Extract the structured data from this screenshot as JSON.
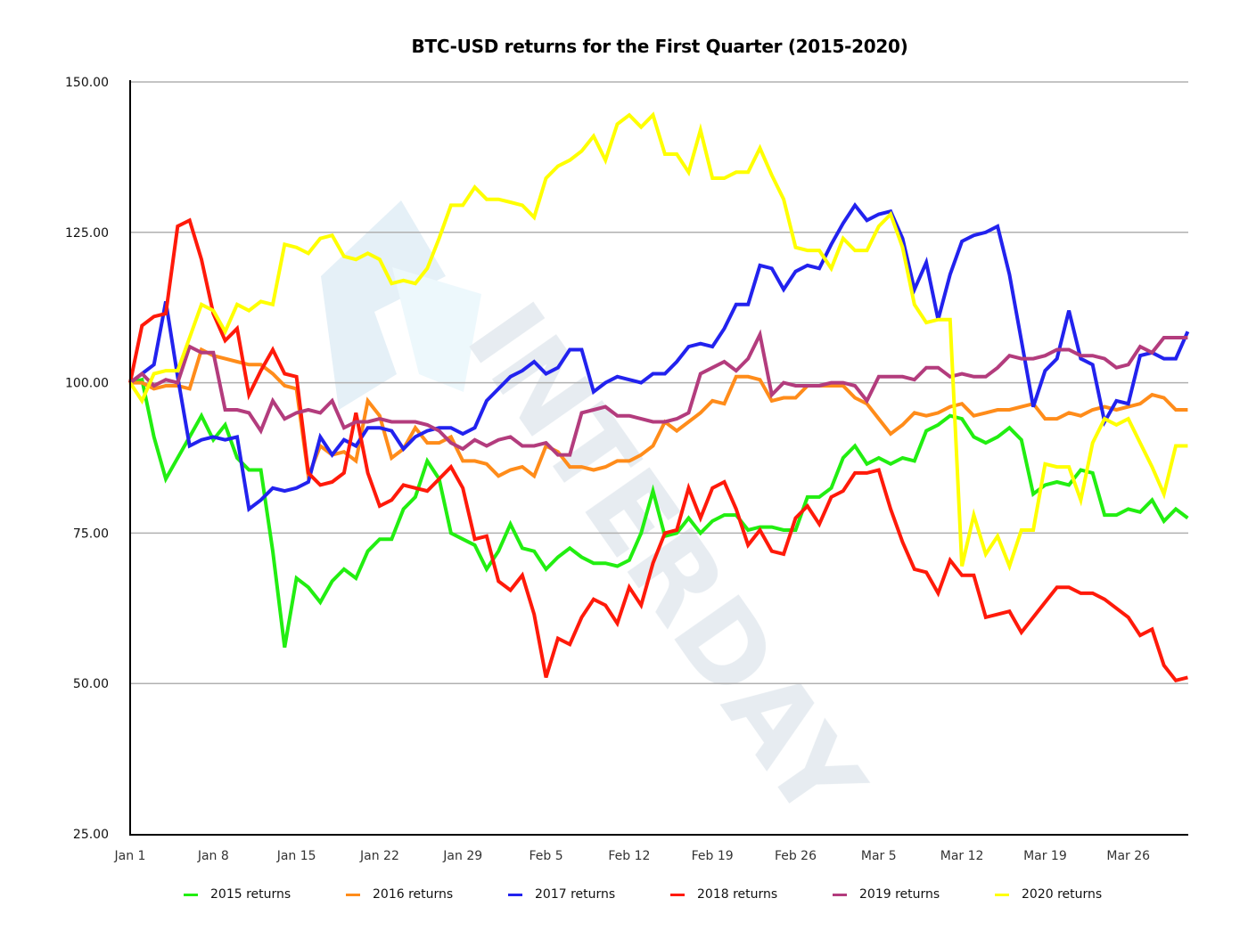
{
  "chart_data": {
    "type": "line",
    "title": "BTC-USD returns for the First Quarter (2015-2020)",
    "xlabel": "",
    "ylabel": "",
    "ylim": [
      25,
      150
    ],
    "yticks": [
      "25.00",
      "50.00",
      "75.00",
      "100.00",
      "125.00",
      "150.00"
    ],
    "xticks": [
      "Jan 1",
      "Jan 8",
      "Jan 15",
      "Jan 22",
      "Jan 29",
      "Feb 5",
      "Feb 12",
      "Feb 19",
      "Feb 26",
      "Mar 5",
      "Mar 12",
      "Mar 19",
      "Mar 26"
    ],
    "grid": "horizontal",
    "legend_position": "bottom",
    "x_unit": "day index (0 = Jan 1)",
    "series": [
      {
        "name": "2015 returns",
        "color": "#22ee11",
        "x": [
          0,
          1,
          2,
          3,
          4,
          5,
          6,
          7,
          8,
          9,
          10,
          11,
          12,
          13,
          14,
          15,
          16,
          17,
          18,
          19,
          20,
          21,
          22,
          23,
          24,
          25,
          26,
          27,
          28,
          29,
          30,
          31,
          32,
          33,
          34,
          35,
          36,
          37,
          38,
          39,
          40,
          41,
          42,
          43,
          44,
          45,
          46,
          47,
          48,
          49,
          50,
          51,
          52,
          53,
          54,
          55,
          56,
          57,
          58,
          59,
          60,
          61,
          62,
          63,
          64,
          65,
          66,
          67,
          68,
          69,
          70,
          71,
          72,
          73,
          74,
          75,
          76,
          77,
          78,
          79,
          80,
          81,
          82,
          83,
          84,
          85,
          86,
          87,
          88,
          89
        ],
        "values": [
          100,
          100.5,
          91,
          84,
          87.5,
          91,
          94.5,
          90.5,
          93,
          87.5,
          85.5,
          85.5,
          72,
          56,
          67.5,
          66,
          63.5,
          67,
          69,
          67.5,
          72,
          74,
          74,
          79,
          81,
          87,
          84,
          75,
          74,
          73,
          69,
          72,
          76.5,
          72.5,
          72,
          69,
          71,
          72.5,
          71,
          70,
          70,
          69.5,
          70.5,
          75,
          82,
          74.5,
          75,
          77.5,
          75,
          77,
          78,
          78,
          75.5,
          76,
          76,
          75.5,
          75.5,
          81,
          81,
          82.5,
          87.5,
          89.5,
          86.5,
          87.5,
          86.5,
          87.5,
          87,
          92,
          93,
          94.5,
          94,
          91,
          90,
          91,
          92.5,
          90.5,
          81.5,
          83,
          83.5,
          83,
          85.5,
          85,
          78,
          78,
          79,
          78.5,
          80.5,
          77,
          79,
          77.5
        ]
      },
      {
        "name": "2016 returns",
        "color": "#ff8c1a",
        "x": [
          0,
          1,
          2,
          3,
          4,
          5,
          6,
          7,
          8,
          9,
          10,
          11,
          12,
          13,
          14,
          15,
          16,
          17,
          18,
          19,
          20,
          21,
          22,
          23,
          24,
          25,
          26,
          27,
          28,
          29,
          30,
          31,
          32,
          33,
          34,
          35,
          36,
          37,
          38,
          39,
          40,
          41,
          42,
          43,
          44,
          45,
          46,
          47,
          48,
          49,
          50,
          51,
          52,
          53,
          54,
          55,
          56,
          57,
          58,
          59,
          60,
          61,
          62,
          63,
          64,
          65,
          66,
          67,
          68,
          69,
          70,
          71,
          72,
          73,
          74,
          75,
          76,
          77,
          78,
          79,
          80,
          81,
          82,
          83,
          84,
          85,
          86,
          87,
          88,
          89
        ],
        "values": [
          100,
          100,
          99,
          99.5,
          99.5,
          99,
          105.5,
          104.5,
          104,
          103.5,
          103,
          103,
          101.5,
          99.5,
          99,
          84.5,
          89.5,
          88,
          88.5,
          87,
          97,
          94.5,
          87.5,
          89,
          92.5,
          90,
          90,
          91,
          87,
          87,
          86.5,
          84.5,
          85.5,
          86,
          84.5,
          89.5,
          88.5,
          86,
          86,
          85.5,
          86,
          87,
          87,
          88,
          89.5,
          93.5,
          92,
          93.5,
          95,
          97,
          96.5,
          101,
          101,
          100.5,
          97,
          97.5,
          97.5,
          99.5,
          99.5,
          99.5,
          99.5,
          97.5,
          96.5,
          94,
          91.5,
          93,
          95,
          94.5,
          95,
          96,
          96.5,
          94.5,
          95,
          95.5,
          95.5,
          96,
          96.5,
          94,
          94,
          95,
          94.5,
          95.5,
          96,
          95.5,
          96,
          96.5,
          98,
          97.5,
          95.5,
          95.5
        ]
      },
      {
        "name": "2017 returns",
        "color": "#2222ee",
        "x": [
          0,
          1,
          2,
          3,
          4,
          5,
          6,
          7,
          8,
          9,
          10,
          11,
          12,
          13,
          14,
          15,
          16,
          17,
          18,
          19,
          20,
          21,
          22,
          23,
          24,
          25,
          26,
          27,
          28,
          29,
          30,
          31,
          32,
          33,
          34,
          35,
          36,
          37,
          38,
          39,
          40,
          41,
          42,
          43,
          44,
          45,
          46,
          47,
          48,
          49,
          50,
          51,
          52,
          53,
          54,
          55,
          56,
          57,
          58,
          59,
          60,
          61,
          62,
          63,
          64,
          65,
          66,
          67,
          68,
          69,
          70,
          71,
          72,
          73,
          74,
          75,
          76,
          77,
          78,
          79,
          80,
          81,
          82,
          83,
          84,
          85,
          86,
          87,
          88,
          89
        ],
        "values": [
          100,
          101.5,
          103,
          113.5,
          101,
          89.5,
          90.5,
          91,
          90.5,
          91,
          79,
          80.5,
          82.5,
          82,
          82.5,
          83.5,
          91,
          88,
          90.5,
          89.5,
          92.5,
          92.5,
          92,
          89,
          91,
          92,
          92.5,
          92.5,
          91.5,
          92.5,
          97,
          99,
          101,
          102,
          103.5,
          101.5,
          102.5,
          105.5,
          105.5,
          98.5,
          100,
          101,
          100.5,
          100,
          101.5,
          101.5,
          103.5,
          106,
          106.5,
          106,
          109,
          113,
          113,
          119.5,
          119,
          115.5,
          118.5,
          119.5,
          119,
          123,
          126.5,
          129.5,
          127,
          128,
          128.5,
          124,
          115.5,
          120,
          110.5,
          118,
          123.5,
          124.5,
          125,
          126,
          118,
          107,
          96,
          102,
          104,
          112,
          104,
          103,
          93.5,
          97,
          96.5,
          104.5,
          105,
          104,
          104,
          108.5
        ]
      },
      {
        "name": "2018 returns",
        "color": "#ff1a0a",
        "x": [
          0,
          1,
          2,
          3,
          4,
          5,
          6,
          7,
          8,
          9,
          10,
          11,
          12,
          13,
          14,
          15,
          16,
          17,
          18,
          19,
          20,
          21,
          22,
          23,
          24,
          25,
          26,
          27,
          28,
          29,
          30,
          31,
          32,
          33,
          34,
          35,
          36,
          37,
          38,
          39,
          40,
          41,
          42,
          43,
          44,
          45,
          46,
          47,
          48,
          49,
          50,
          51,
          52,
          53,
          54,
          55,
          56,
          57,
          58,
          59,
          60,
          61,
          62,
          63,
          64,
          65,
          66,
          67,
          68,
          69,
          70,
          71,
          72,
          73,
          74,
          75,
          76,
          77,
          78,
          79,
          80,
          81,
          82,
          83,
          84,
          85,
          86,
          87,
          88,
          89
        ],
        "values": [
          100,
          109.5,
          111,
          111.5,
          126,
          127,
          120.5,
          111.5,
          107,
          109,
          98,
          102,
          105.5,
          101.5,
          101,
          85,
          83,
          83.5,
          85,
          95,
          85,
          79.5,
          80.5,
          83,
          82.5,
          82,
          84,
          86,
          82.5,
          74,
          74.5,
          67,
          65.5,
          68,
          61.5,
          51,
          57.5,
          56.5,
          61,
          64,
          63,
          60,
          66,
          63,
          70,
          75,
          75.5,
          82.5,
          77.5,
          82.5,
          83.5,
          79,
          73,
          75.5,
          72,
          71.5,
          77.5,
          79.5,
          76.5,
          81,
          82,
          85,
          85,
          85.5,
          79,
          73.5,
          69,
          68.5,
          65,
          70.5,
          68,
          68,
          61,
          61.5,
          62,
          58.5,
          61,
          63.5,
          66,
          66,
          65,
          65,
          64,
          62.5,
          61,
          58,
          59,
          53,
          50.5,
          51
        ]
      },
      {
        "name": "2019 returns",
        "color": "#b33c7d",
        "x": [
          0,
          1,
          2,
          3,
          4,
          5,
          6,
          7,
          8,
          9,
          10,
          11,
          12,
          13,
          14,
          15,
          16,
          17,
          18,
          19,
          20,
          21,
          22,
          23,
          24,
          25,
          26,
          27,
          28,
          29,
          30,
          31,
          32,
          33,
          34,
          35,
          36,
          37,
          38,
          39,
          40,
          41,
          42,
          43,
          44,
          45,
          46,
          47,
          48,
          49,
          50,
          51,
          52,
          53,
          54,
          55,
          56,
          57,
          58,
          59,
          60,
          61,
          62,
          63,
          64,
          65,
          66,
          67,
          68,
          69,
          70,
          71,
          72,
          73,
          74,
          75,
          76,
          77,
          78,
          79,
          80,
          81,
          82,
          83,
          84,
          85,
          86,
          87,
          88,
          89
        ],
        "values": [
          100,
          101.5,
          99.5,
          100.5,
          100,
          106,
          105,
          105,
          95.5,
          95.5,
          95,
          92,
          97,
          94,
          95,
          95.5,
          95,
          97,
          92.5,
          93.5,
          93.5,
          94,
          93.5,
          93.5,
          93.5,
          93,
          92,
          90,
          89,
          90.5,
          89.5,
          90.5,
          91,
          89.5,
          89.5,
          90,
          88,
          88,
          95,
          95.5,
          96,
          94.5,
          94.5,
          94,
          93.5,
          93.5,
          94,
          95,
          101.5,
          102.5,
          103.5,
          102,
          104,
          108,
          98,
          100,
          99.5,
          99.5,
          99.5,
          100,
          100,
          99.5,
          97,
          101,
          101,
          101,
          100.5,
          102.5,
          102.5,
          101,
          101.5,
          101,
          101,
          102.5,
          104.5,
          104,
          104,
          104.5,
          105.5,
          105.5,
          104.5,
          104.5,
          104,
          102.5,
          103,
          106,
          105,
          107.5,
          107.5,
          107.5
        ]
      },
      {
        "name": "2020 returns",
        "color": "#ffff00",
        "x": [
          0,
          1,
          2,
          3,
          4,
          5,
          6,
          7,
          8,
          9,
          10,
          11,
          12,
          13,
          14,
          15,
          16,
          17,
          18,
          19,
          20,
          21,
          22,
          23,
          24,
          25,
          26,
          27,
          28,
          29,
          30,
          31,
          32,
          33,
          34,
          35,
          36,
          37,
          38,
          39,
          40,
          41,
          42,
          43,
          44,
          45,
          46,
          47,
          48,
          49,
          50,
          51,
          52,
          53,
          54,
          55,
          56,
          57,
          58,
          59,
          60,
          61,
          62,
          63,
          64,
          65,
          66,
          67,
          68,
          69,
          70,
          71,
          72,
          73,
          74,
          75,
          76,
          77,
          78,
          79,
          80,
          81,
          82,
          83,
          84,
          85,
          86,
          87,
          88,
          89
        ],
        "values": [
          100,
          97,
          101.5,
          102,
          102,
          107.5,
          113,
          112,
          108.5,
          113,
          112,
          113.5,
          113,
          123,
          122.5,
          121.5,
          124,
          124.5,
          121,
          120.5,
          121.5,
          120.5,
          116.5,
          117,
          116.5,
          119,
          124,
          129.5,
          129.5,
          132.5,
          130.5,
          130.5,
          130,
          129.5,
          127.5,
          134,
          136,
          137,
          138.5,
          141,
          137,
          143,
          144.5,
          142.5,
          144.5,
          138,
          138,
          135,
          142,
          134,
          134,
          135,
          135,
          139,
          134.5,
          130.5,
          122.5,
          122,
          122,
          119,
          124,
          122,
          122,
          126,
          128,
          122.5,
          113,
          110,
          110.5,
          110.5,
          69.5,
          78,
          71.5,
          74.5,
          69.5,
          75.5,
          75.5,
          86.5,
          86,
          86,
          80.5,
          90,
          94,
          93,
          94,
          90,
          86,
          81.5,
          89.5,
          89.5
        ]
      }
    ]
  },
  "watermark": {
    "text": "INTERDAY"
  }
}
